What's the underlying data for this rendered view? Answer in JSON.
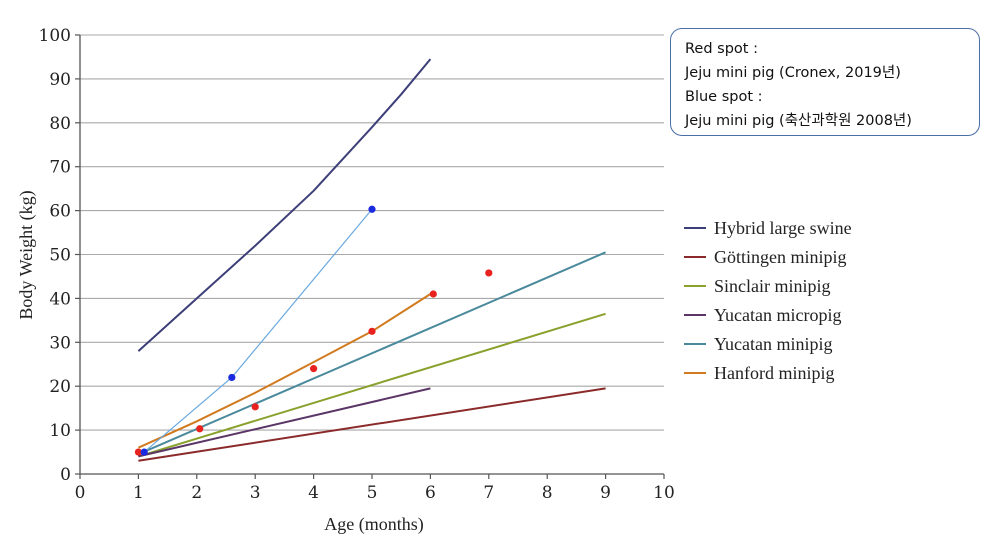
{
  "note": {
    "lines": [
      "Red spot :",
      "Jeju mini pig (Cronex, 2019년)",
      "Blue spot :",
      "Jeju mini pig (축산과학원 2008년)"
    ]
  },
  "chart_data": {
    "type": "line",
    "xlabel": "Age (months)",
    "ylabel": "Body Weight (kg)",
    "xlim": [
      0,
      10
    ],
    "ylim": [
      0,
      100
    ],
    "x_ticks": [
      "0",
      "1",
      "2",
      "3",
      "4",
      "5",
      "6",
      "7",
      "8",
      "9",
      "10"
    ],
    "y_ticks": [
      "0",
      "10",
      "20",
      "30",
      "40",
      "50",
      "60",
      "70",
      "80",
      "90",
      "100"
    ],
    "grid": "horizontal",
    "legend_position": "right",
    "series": [
      {
        "name": "Hybrid large swine",
        "color": "#3d3f78",
        "x": [
          1,
          2,
          3,
          4,
          5,
          5.5,
          6
        ],
        "y": [
          28,
          40,
          52,
          64.5,
          79,
          86.5,
          94.5
        ]
      },
      {
        "name": "Göttingen minipig",
        "color": "#8b2a2a",
        "x": [
          1,
          9
        ],
        "y": [
          3,
          19.5
        ]
      },
      {
        "name": "Sinclair minipig",
        "color": "#8aa12e",
        "x": [
          1,
          9
        ],
        "y": [
          4,
          36.5
        ]
      },
      {
        "name": "Yucatan micropig",
        "color": "#5a3566",
        "x": [
          1,
          6
        ],
        "y": [
          4,
          19.5
        ]
      },
      {
        "name": "Yucatan minipig",
        "color": "#4a8a9c",
        "x": [
          1,
          9
        ],
        "y": [
          4.5,
          50.5
        ]
      },
      {
        "name": "Hanford minipig",
        "color": "#d17a1f",
        "x": [
          1,
          2,
          3,
          4,
          5,
          6
        ],
        "y": [
          6,
          12,
          18.5,
          25.5,
          32.5,
          41
        ]
      }
    ],
    "point_sets": [
      {
        "color": "#e8231f",
        "x": [
          1,
          2.05,
          3,
          4,
          5,
          6.05,
          7
        ],
        "y": [
          5,
          10.3,
          15.3,
          24,
          32.5,
          41,
          45.8
        ]
      },
      {
        "color": "#1a2ae0",
        "line_color": "#6aa9e0",
        "x": [
          1.1,
          2.6,
          5
        ],
        "y": [
          5,
          22,
          60.3
        ]
      }
    ]
  }
}
